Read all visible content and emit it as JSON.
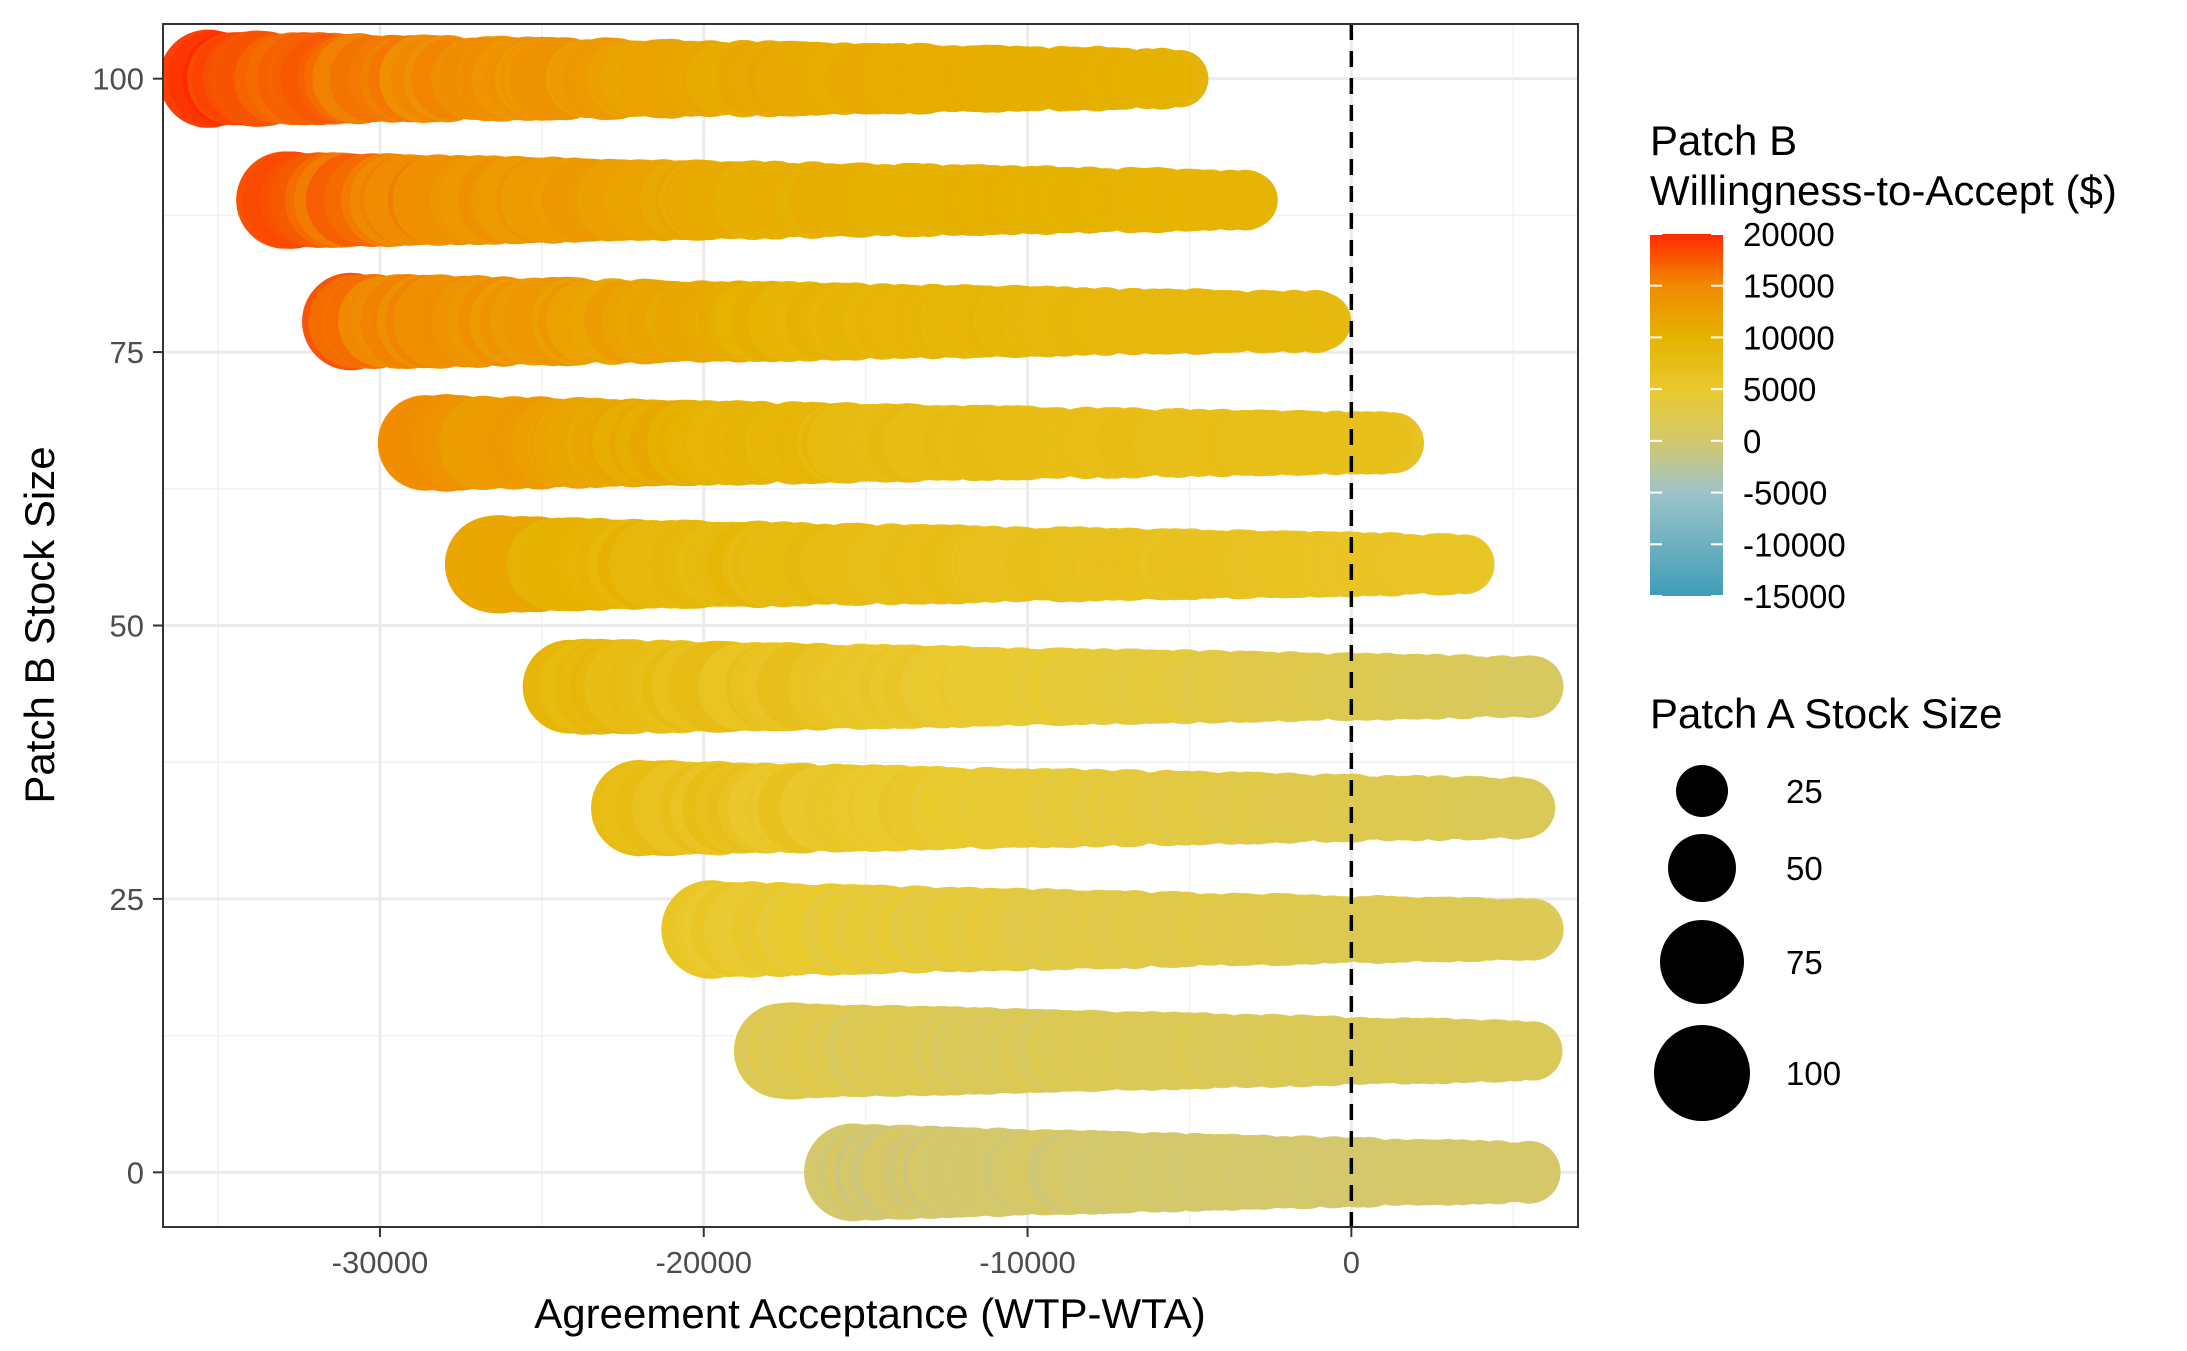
{
  "chart_data": {
    "type": "scatter",
    "xlabel": "Agreement Acceptance (WTP-WTA)",
    "ylabel": "Patch B Stock Size",
    "xlim": [
      -36700,
      7000
    ],
    "ylim": [
      -5,
      105
    ],
    "x_ticks": [
      -30000,
      -20000,
      -10000,
      0
    ],
    "y_ticks": [
      0,
      25,
      50,
      75,
      100
    ],
    "x_tick_labels": [
      "-30000",
      "-20000",
      "-10000",
      "0"
    ],
    "y_tick_labels": [
      "0",
      "25",
      "50",
      "75",
      "100"
    ],
    "grid": true,
    "reference_line": {
      "x": 0,
      "style": "dashed"
    },
    "color_legend": {
      "title_line1": "Patch B",
      "title_line2": "Willingness-to-Accept ($)",
      "position": "right",
      "range": [
        -15000,
        20000
      ],
      "breaks": [
        20000,
        15000,
        10000,
        5000,
        0,
        -5000,
        -10000,
        -15000
      ],
      "labels": [
        "20000",
        "15000",
        "10000",
        "5000",
        "0",
        "-5000",
        "-10000",
        "-15000"
      ],
      "gradient": [
        {
          "value": -15000,
          "color": "#3f9db8"
        },
        {
          "value": -5000,
          "color": "#9cc4c8"
        },
        {
          "value": 0,
          "color": "#d4c76c"
        },
        {
          "value": 5000,
          "color": "#e9c92e"
        },
        {
          "value": 10000,
          "color": "#e5b200"
        },
        {
          "value": 15000,
          "color": "#f08a00"
        },
        {
          "value": 20000,
          "color": "#ff2a00"
        }
      ]
    },
    "size_legend": {
      "title": "Patch A Stock Size",
      "position": "right",
      "breaks": [
        25,
        50,
        75,
        100
      ],
      "labels": [
        "25",
        "50",
        "75",
        "100"
      ]
    },
    "series": [
      {
        "patch_b_stock": 100,
        "x_min": -35300,
        "x_max": -5300,
        "wtp_start": 20000,
        "wtp_mid": 11500,
        "wtp_end": 10000
      },
      {
        "patch_b_stock": 88.9,
        "x_min": -33100,
        "x_max": -3100,
        "wtp_start": 18500,
        "wtp_mid": 10500,
        "wtp_end": 9500
      },
      {
        "patch_b_stock": 77.8,
        "x_min": -30900,
        "x_max": -900,
        "wtp_start": 17000,
        "wtp_mid": 9500,
        "wtp_end": 8500
      },
      {
        "patch_b_stock": 66.7,
        "x_min": -28700,
        "x_max": 1300,
        "wtp_start": 15000,
        "wtp_mid": 8000,
        "wtp_end": 7000
      },
      {
        "patch_b_stock": 55.6,
        "x_min": -26500,
        "x_max": 3500,
        "wtp_start": 11500,
        "wtp_mid": 7000,
        "wtp_end": 6000
      },
      {
        "patch_b_stock": 44.4,
        "x_min": -24200,
        "x_max": 5600,
        "wtp_start": 9500,
        "wtp_mid": 4500,
        "wtp_end": 1000
      },
      {
        "patch_b_stock": 33.3,
        "x_min": -22000,
        "x_max": 5600,
        "wtp_start": 8000,
        "wtp_mid": 4000,
        "wtp_end": 1500
      },
      {
        "patch_b_stock": 22.2,
        "x_min": -19800,
        "x_max": 5600,
        "wtp_start": 6000,
        "wtp_mid": 3000,
        "wtp_end": 1800
      },
      {
        "patch_b_stock": 11.1,
        "x_min": -17600,
        "x_max": 5600,
        "wtp_start": 2000,
        "wtp_mid": 1800,
        "wtp_end": 1500
      },
      {
        "patch_b_stock": 0,
        "x_min": -15400,
        "x_max": 5600,
        "wtp_start": 0,
        "wtp_mid": 0,
        "wtp_end": 300
      }
    ]
  }
}
